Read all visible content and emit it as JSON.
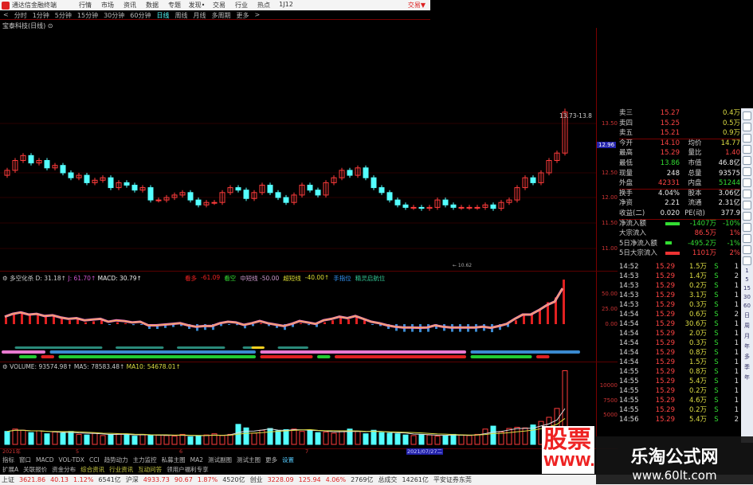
{
  "menubar": {
    "app_title": "通达信金融终端",
    "items": [
      "行情",
      "市场",
      "资讯",
      "数据",
      "专题",
      "发现•",
      "交易",
      "行业",
      "热点",
      "1J12"
    ],
    "trade": "交易▼"
  },
  "periods": {
    "items": [
      "<",
      "分时",
      "1分钟",
      "5分钟",
      "15分钟",
      "30分钟",
      "60分钟",
      "日线",
      "周线",
      "月线",
      "多周期",
      "更多",
      ">"
    ],
    "active": "日线"
  },
  "stock": {
    "name": "宝泰科技(日线) ⊙"
  },
  "price_chart": {
    "axis_ticks": [
      "13.50",
      "12.50",
      "12.00",
      "11.50",
      "11.00"
    ],
    "current_price_marker": "12.96",
    "high_label": "13.73-13.8",
    "low_label": "← 10.62",
    "closes": [
      12.55,
      12.75,
      12.85,
      12.7,
      12.75,
      12.6,
      12.65,
      12.5,
      12.4,
      12.45,
      12.3,
      12.35,
      12.4,
      12.2,
      12.3,
      12.25,
      12.15,
      12.2,
      11.95,
      11.95,
      12.0,
      12.05,
      12.1,
      11.95,
      11.85,
      11.9,
      11.9,
      12.1,
      12.2,
      12.15,
      11.98,
      12.1,
      12.25,
      12.1,
      12.0,
      11.9,
      12.05,
      12.25,
      12.15,
      12.05,
      12.3,
      12.4,
      12.55,
      12.45,
      12.6,
      12.4,
      12.2,
      12.1,
      11.95,
      11.85,
      11.8,
      11.8,
      11.78,
      11.8,
      11.95,
      11.85,
      11.8,
      11.8,
      11.8,
      11.8,
      11.85,
      11.78,
      11.9,
      11.95,
      12.2,
      12.4,
      12.3,
      12.5,
      12.75,
      12.9,
      13.73
    ],
    "colors": {
      "up": "#ff3b3b",
      "down": "#54ffff"
    }
  },
  "macd_panel": {
    "title": "多空化杀",
    "d": "D: 31.18↑",
    "j": "J: 61.70↑",
    "macd": "MACD: 30.79↑",
    "flags": [
      {
        "t": "看多",
        "c": "#e22"
      },
      {
        "t": "-61.09",
        "c": "#e22"
      },
      {
        "t": "看空",
        "c": "#3d3"
      },
      {
        "t": "中短线 -50.00",
        "c": "#c9c"
      },
      {
        "t": "超短线",
        "c": "#dd3"
      },
      {
        "t": "-40.00↑",
        "c": "#dd3"
      },
      {
        "t": "手指位",
        "c": "#39f"
      },
      {
        "t": "精灵启航位",
        "c": "#3c9"
      }
    ],
    "axis_ticks": [
      "50.00",
      "25.00",
      "0.00"
    ],
    "bands": [
      {
        "color": "#2a8a7a",
        "segs": [
          [
            3,
            23
          ],
          [
            26,
            37
          ],
          [
            40,
            51
          ],
          [
            55,
            59
          ],
          [
            63,
            70
          ]
        ]
      },
      {
        "color": "#f5d020",
        "segs": [
          [
            57,
            60
          ]
        ]
      },
      {
        "color": "#e87ad0",
        "segs": [
          [
            0,
            10
          ],
          [
            59,
            106
          ]
        ]
      },
      {
        "color": "#3a8ad0",
        "segs": [
          [
            11,
            58
          ],
          [
            107,
            132
          ]
        ]
      },
      {
        "color": "#22cc33",
        "segs": [
          [
            4,
            8
          ],
          [
            13,
            58
          ],
          [
            107,
            121
          ],
          [
            72,
            75
          ]
        ]
      },
      {
        "color": "#e02020",
        "segs": [
          [
            9,
            12
          ],
          [
            59,
            71
          ],
          [
            76,
            106
          ],
          [
            122,
            125
          ]
        ]
      }
    ]
  },
  "volume_panel": {
    "label": "VOLUME: 93574.98↑",
    "ma5": "MA5: 78583.48↑",
    "ma10": "MA10: 54678.01↑",
    "axis_ticks": [
      "10000",
      "7500",
      "5000"
    ],
    "values": [
      2200,
      2600,
      2400,
      2000,
      2300,
      1800,
      2100,
      1900,
      2200,
      1700,
      1600,
      1900,
      1500,
      1700,
      1800,
      1600,
      1400,
      1700,
      1500,
      1600,
      1500,
      1400,
      1700,
      1300,
      1500,
      1600,
      1800,
      1500,
      1700,
      3400,
      2800,
      1900,
      2400,
      2700,
      2300,
      2500,
      2600,
      2200,
      2400,
      2000,
      2100,
      1900,
      2300,
      2600,
      2200,
      1800,
      2400,
      2000,
      1900,
      1800,
      1600,
      1500,
      1700,
      1600,
      1400,
      1500,
      1700,
      1600,
      1500,
      1700,
      2600,
      3100,
      2100,
      2700,
      2900,
      2800,
      3300,
      3900,
      4600,
      6100,
      12500
    ]
  },
  "xaxis": {
    "labels": [
      "2021年",
      "5",
      "6",
      "7"
    ],
    "cursor_date": "2021/07/27二"
  },
  "quote": {
    "asks": [
      {
        "l": "卖三",
        "p": "15.27",
        "v": "0.4万"
      },
      {
        "l": "卖四",
        "p": "15.25",
        "v": "0.5万"
      },
      {
        "l": "卖五",
        "p": "15.21",
        "v": "0.9万"
      }
    ],
    "stats": [
      [
        "今开",
        "14.10",
        "均价",
        "14.77"
      ],
      [
        "最高",
        "15.29",
        "量比",
        "1.40"
      ],
      [
        "最低",
        "13.86",
        "市值",
        "46.8亿"
      ],
      [
        "现量",
        "248",
        "总量",
        "93575"
      ],
      [
        "外盘",
        "42331",
        "内盘",
        "51244"
      ],
      [
        "换手",
        "4.04%",
        "股本",
        "3.06亿"
      ],
      [
        "净资",
        "2.21",
        "流通",
        "2.31亿"
      ],
      [
        "收益(二)",
        "0.020",
        "PE(动)",
        "377.9"
      ]
    ],
    "flows": [
      {
        "l": "净流入额",
        "v": "-1407万",
        "p": "-10%",
        "bar": "#3d3"
      },
      {
        "l": "大宗流入",
        "v": "86.5万",
        "p": "1%",
        "bar": ""
      },
      {
        "l": "5日净流入额",
        "v": "-495.2万",
        "p": "-1%",
        "bar": "#3d3"
      },
      {
        "l": "5日大宗流入",
        "v": "1101万",
        "p": "2%",
        "bar": "#e33"
      }
    ]
  },
  "ticks": [
    [
      "14:52",
      "15.29",
      "1.5万",
      "S",
      "1"
    ],
    [
      "14:53",
      "15.29",
      "1.4万",
      "S",
      "2"
    ],
    [
      "14:53",
      "15.29",
      "0.2万",
      "S",
      "1"
    ],
    [
      "14:53",
      "15.29",
      "3.1万",
      "S",
      "1"
    ],
    [
      "14:53",
      "15.29",
      "0.3万",
      "S",
      "1"
    ],
    [
      "14:54",
      "15.29",
      "0.6万",
      "S",
      "2"
    ],
    [
      "14:54",
      "15.29",
      "30.6万",
      "S",
      "1"
    ],
    [
      "14:54",
      "15.29",
      "2.0万",
      "S",
      "1"
    ],
    [
      "14:54",
      "15.29",
      "0.3万",
      "S",
      "1"
    ],
    [
      "14:54",
      "15.29",
      "0.8万",
      "S",
      "1"
    ],
    [
      "14:54",
      "15.29",
      "1.5万",
      "S",
      "1"
    ],
    [
      "14:55",
      "15.29",
      "0.8万",
      "S",
      "1"
    ],
    [
      "14:55",
      "15.29",
      "5.4万",
      "S",
      "1"
    ],
    [
      "14:55",
      "15.29",
      "0.2万",
      "S",
      "1"
    ],
    [
      "14:55",
      "15.29",
      "4.6万",
      "S",
      "1"
    ],
    [
      "14:55",
      "15.29",
      "0.2万",
      "S",
      "1"
    ],
    [
      "14:56",
      "15.29",
      "5.4万",
      "S",
      "2"
    ]
  ],
  "toolbar": {
    "periods": [
      "1",
      "5",
      "15",
      "30",
      "60",
      "日",
      "周",
      "月",
      "年",
      "多",
      "季",
      "年"
    ]
  },
  "tabs1": [
    "指标",
    "窗口",
    "MACD",
    "VOL-TDX",
    "CCI",
    "趋势动力",
    "主力监控",
    "私募主图",
    "MA2",
    "测试副图",
    "测试主图",
    "更多",
    "设置"
  ],
  "tabs2": [
    "扩展A",
    "关联报价",
    "资金分布",
    "综合资讯",
    "行业资讯",
    "互动问答",
    "领用户福利专享"
  ],
  "status": [
    {
      "n": "上证",
      "v": [
        "3621.86",
        "40.13",
        "1.12%"
      ],
      "a": "6541亿"
    },
    {
      "n": "沪深",
      "v": [
        "4933.73",
        "90.67",
        "1.87%"
      ],
      "a": "4520亿"
    },
    {
      "n": "创业",
      "v": [
        "3228.09",
        "125.94",
        "4.06%"
      ],
      "a": "2769亿"
    }
  ],
  "status_total": {
    "n": "总成交",
    "v": "14261亿",
    "broker": "平安证券东莞"
  },
  "watermark": {
    "a": "股票公式指标网",
    "b": "www.",
    "c": "乐淘公式网",
    "d": "www.60lt.com"
  }
}
